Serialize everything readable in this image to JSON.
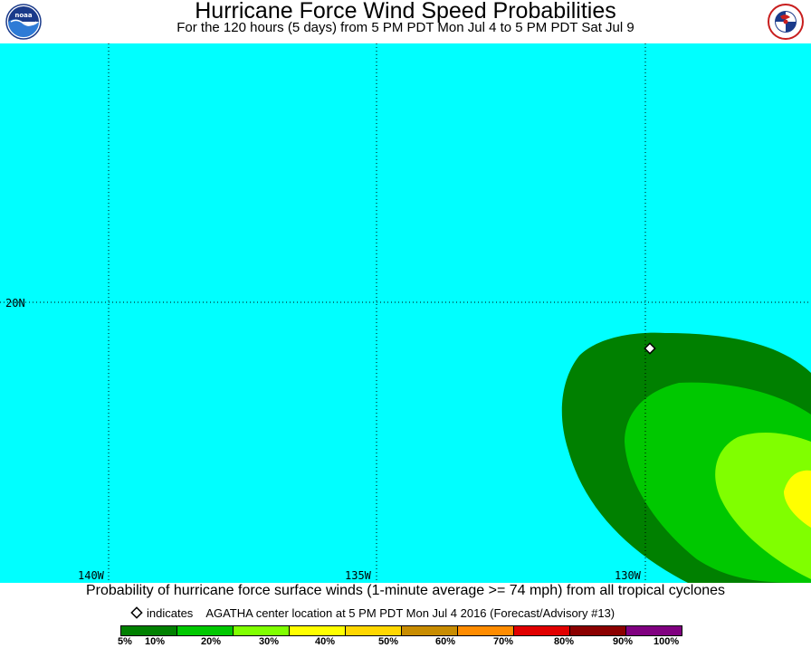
{
  "header": {
    "title": "Hurricane Force Wind Speed Probabilities",
    "subtitle": "For the 120 hours (5 days) from 5 PM PDT Mon Jul 4 to 5 PM PDT Sat Jul 9",
    "left_logo": "noaa-logo",
    "right_logo": "national-weather-service-logo"
  },
  "map": {
    "background_color": "#00ffff",
    "latitude_labels": [
      "20N"
    ],
    "longitude_labels": [
      "140W",
      "135W",
      "130W"
    ],
    "storm_marker": "diamond",
    "bands": [
      {
        "level": "5%",
        "color": "#008000"
      },
      {
        "level": "10%",
        "color": "#00c800"
      },
      {
        "level": "20%",
        "color": "#80ff00"
      },
      {
        "level": "30%",
        "color": "#ffff00"
      }
    ]
  },
  "footer": {
    "caption": "Probability of hurricane force surface winds (1-minute average >= 74 mph) from all tropical cyclones",
    "indicator_word": "indicates",
    "indicator_text": "AGATHA center location at 5 PM PDT Mon Jul 4 2016 (Forecast/Advisory #13)"
  },
  "legend": {
    "colors": [
      "#008000",
      "#00c800",
      "#80ff00",
      "#ffff00",
      "#ffd700",
      "#c88c00",
      "#ff8c00",
      "#e10000",
      "#8b0000",
      "#800080"
    ],
    "labels": [
      "5%",
      "10%",
      "20%",
      "30%",
      "40%",
      "50%",
      "60%",
      "70%",
      "80%",
      "90%",
      "100%"
    ]
  }
}
